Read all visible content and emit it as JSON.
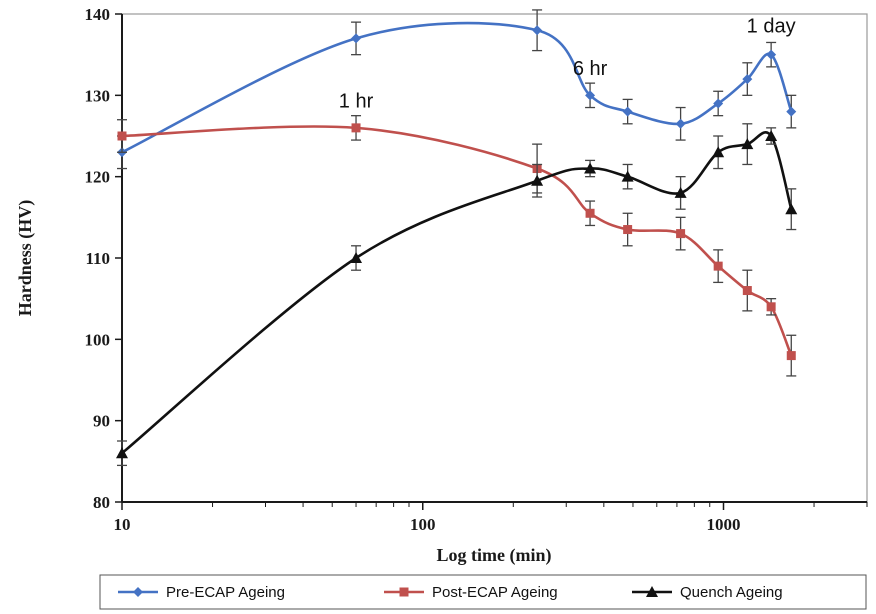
{
  "chart_data": {
    "type": "line",
    "title": "",
    "xlabel": "Log time (min)",
    "ylabel": "Hardness (HV)",
    "xscale": "log",
    "xlim": [
      10,
      3000
    ],
    "ylim": [
      80,
      140
    ],
    "x_ticks": [
      10,
      100,
      1000
    ],
    "y_ticks": [
      80,
      90,
      100,
      110,
      120,
      130,
      140
    ],
    "grid": false,
    "legend_position": "bottom",
    "series": [
      {
        "name": "Pre-ECAP Ageing",
        "color": "#4472C4",
        "marker": "diamond",
        "x": [
          10,
          60,
          240,
          360,
          480,
          720,
          960,
          1200,
          1440,
          1680
        ],
        "y": [
          123,
          137,
          138,
          130,
          128,
          126.5,
          129,
          132,
          135,
          128
        ],
        "err": [
          2,
          2,
          2.5,
          1.5,
          1.5,
          2,
          1.5,
          2,
          1.5,
          2
        ]
      },
      {
        "name": "Post-ECAP Ageing",
        "color": "#C0504D",
        "marker": "square",
        "x": [
          10,
          60,
          240,
          360,
          480,
          720,
          960,
          1200,
          1440,
          1680
        ],
        "y": [
          125,
          126,
          121,
          115.5,
          113.5,
          113,
          109,
          106,
          104,
          98
        ],
        "err": [
          2,
          1.5,
          3,
          1.5,
          2,
          2,
          2,
          2.5,
          1,
          2.5
        ]
      },
      {
        "name": "Quench Ageing",
        "color": "#111111",
        "marker": "triangle",
        "x": [
          10,
          60,
          240,
          360,
          480,
          720,
          960,
          1200,
          1440,
          1680
        ],
        "y": [
          86,
          110,
          119.5,
          121,
          120,
          118,
          123,
          124,
          125,
          116
        ],
        "err": [
          1.5,
          1.5,
          2,
          1,
          1.5,
          2,
          2,
          2.5,
          1,
          2.5
        ]
      }
    ],
    "annotations": [
      {
        "text": "1 hr",
        "x": 60,
        "y": 128.5
      },
      {
        "text": "6 hr",
        "x": 360,
        "y": 132.5
      },
      {
        "text": "1 day",
        "x": 1440,
        "y": 137.7
      }
    ]
  }
}
